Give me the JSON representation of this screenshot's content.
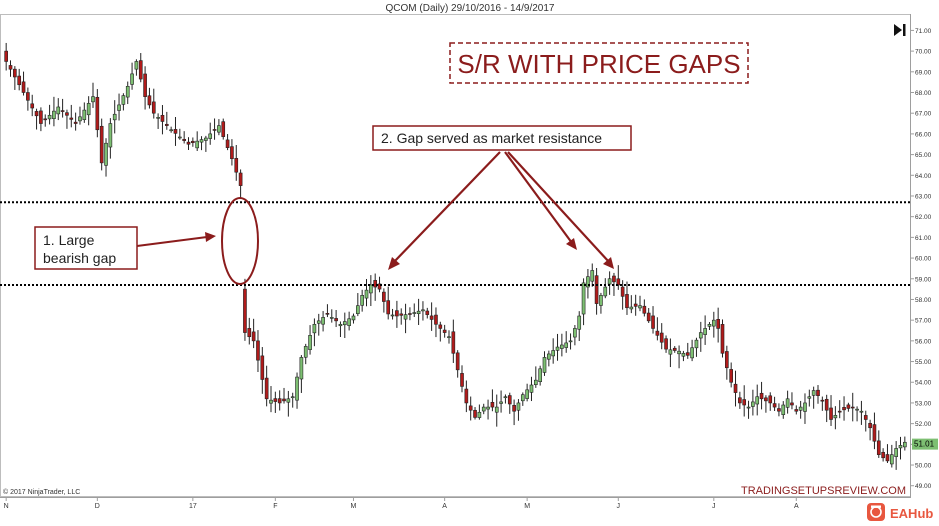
{
  "header": {
    "title": "QCOM (Daily)  29/10/2016 - 14/9/2017"
  },
  "chart_title": "S/R WITH PRICE GAPS",
  "annotations": {
    "gap_label_line1": "1. Large",
    "gap_label_line2": "bearish gap",
    "resistance_label": "2. Gap served as market resistance"
  },
  "copyright": "© 2017 NinjaTrader, LLC",
  "watermark": "TRADINGSETUPSREVIEW.COM",
  "brand": "EAHub",
  "last_price_label": "51.01",
  "colors": {
    "up_candle": "#7dbf72",
    "down_candle": "#b01b1b",
    "annotation": "#8b1c1c",
    "gap_line": "#000000",
    "brand": "#e8573f"
  },
  "icons": [
    "skip-to-end-icon",
    "brand-logo-icon"
  ],
  "chart_data": {
    "type": "candlestick",
    "title": "QCOM (Daily)  29/10/2016 - 14/9/2017",
    "x_tick_labels": [
      "N",
      "D",
      "17",
      "F",
      "M",
      "A",
      "M",
      "J",
      "J",
      "A"
    ],
    "y_tick_labels": [
      "71.00",
      "70.00",
      "69.00",
      "68.00",
      "67.00",
      "66.00",
      "65.00",
      "64.00",
      "63.00",
      "62.00",
      "61.00",
      "60.00",
      "59.00",
      "58.00",
      "57.00",
      "56.00",
      "55.00",
      "54.00",
      "53.00",
      "52.00",
      "51.00",
      "50.00",
      "49.00"
    ],
    "ylim": [
      48.6,
      71.6
    ],
    "grid": false,
    "gap_zone": {
      "upper": 62.7,
      "lower": 58.7
    },
    "last_price": 51.01,
    "close_path": [
      [
        0,
        69.5
      ],
      [
        4,
        68.0
      ],
      [
        8,
        66.5
      ],
      [
        12,
        67.3
      ],
      [
        16,
        66.5
      ],
      [
        20,
        67.8
      ],
      [
        22,
        64.6
      ],
      [
        24,
        66.5
      ],
      [
        28,
        68.3
      ],
      [
        30,
        69.5
      ],
      [
        32,
        67.8
      ],
      [
        34,
        67.0
      ],
      [
        38,
        66.2
      ],
      [
        42,
        65.5
      ],
      [
        46,
        65.8
      ],
      [
        49,
        66.4
      ],
      [
        52,
        64.8
      ],
      [
        54,
        63.5
      ],
      [
        55,
        56.4
      ],
      [
        57,
        56.0
      ],
      [
        60,
        53.2
      ],
      [
        63,
        53.0
      ],
      [
        66,
        53.3
      ],
      [
        68,
        55.2
      ],
      [
        71,
        56.8
      ],
      [
        74,
        57.3
      ],
      [
        77,
        56.8
      ],
      [
        80,
        57.2
      ],
      [
        82,
        58.2
      ],
      [
        84,
        58.7
      ],
      [
        86,
        58.5
      ],
      [
        88,
        57.3
      ],
      [
        90,
        57.2
      ],
      [
        93,
        57.3
      ],
      [
        96,
        57.5
      ],
      [
        99,
        56.8
      ],
      [
        102,
        56.2
      ],
      [
        104,
        54.6
      ],
      [
        106,
        53.0
      ],
      [
        108,
        52.3
      ],
      [
        110,
        52.8
      ],
      [
        113,
        52.8
      ],
      [
        115,
        53.3
      ],
      [
        117,
        52.6
      ],
      [
        119,
        53.4
      ],
      [
        122,
        54.1
      ],
      [
        124,
        55.2
      ],
      [
        127,
        55.7
      ],
      [
        130,
        56.0
      ],
      [
        132,
        57.2
      ],
      [
        133,
        58.8
      ],
      [
        135,
        59.4
      ],
      [
        136,
        57.8
      ],
      [
        137,
        58.2
      ],
      [
        139,
        59.0
      ],
      [
        141,
        58.7
      ],
      [
        143,
        57.6
      ],
      [
        146,
        57.7
      ],
      [
        149,
        56.6
      ],
      [
        152,
        55.6
      ],
      [
        155,
        55.5
      ],
      [
        157,
        55.3
      ],
      [
        160,
        56.4
      ],
      [
        163,
        57.0
      ],
      [
        164,
        56.6
      ],
      [
        165,
        55.4
      ],
      [
        167,
        54.0
      ],
      [
        169,
        53.0
      ],
      [
        171,
        52.8
      ],
      [
        173,
        53.3
      ],
      [
        176,
        53.0
      ],
      [
        178,
        52.6
      ],
      [
        180,
        53.2
      ],
      [
        182,
        52.6
      ],
      [
        184,
        53.0
      ],
      [
        186,
        53.6
      ],
      [
        188,
        53.1
      ],
      [
        190,
        52.2
      ],
      [
        192,
        52.6
      ],
      [
        195,
        52.8
      ],
      [
        197,
        52.6
      ],
      [
        199,
        51.8
      ],
      [
        201,
        50.5
      ],
      [
        203,
        50.2
      ],
      [
        205,
        50.8
      ],
      [
        207,
        51.1
      ]
    ],
    "x_tick_bar_index": [
      0,
      21,
      43,
      62,
      80,
      101,
      120,
      141,
      163,
      182
    ]
  }
}
